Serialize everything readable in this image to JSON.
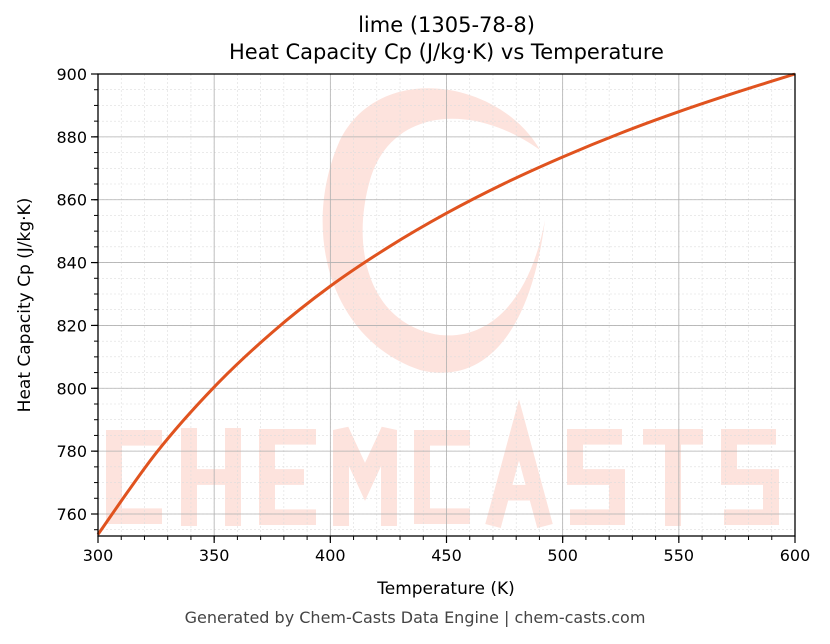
{
  "chart_data": {
    "type": "line",
    "title": "lime (1305-78-8)",
    "subtitle": "Heat Capacity Cp (J/kg·K) vs Temperature",
    "xlabel": "Temperature (K)",
    "ylabel": "Heat Capacity Cp (J/kg·K)",
    "xlim": [
      300,
      600
    ],
    "ylim": [
      753,
      900
    ],
    "xticks": [
      300,
      350,
      400,
      450,
      500,
      550,
      600
    ],
    "yticks": [
      760,
      780,
      800,
      820,
      840,
      860,
      880,
      900
    ],
    "grid": true,
    "minor_grid": true,
    "series": [
      {
        "color": "#e0531f",
        "x": [
          300,
          325,
          350,
          375,
          400,
          425,
          450,
          475,
          500,
          525,
          550,
          575,
          600
        ],
        "y": [
          753.5,
          779.4,
          800.4,
          817.8,
          832.5,
          844.9,
          855.7,
          865.2,
          873.6,
          881.2,
          888.0,
          894.2,
          900.0
        ]
      }
    ]
  },
  "watermark": {
    "text": "CHEMCASTS",
    "color": "#fde3dd"
  },
  "footer": "Generated by Chem-Casts Data Engine | chem-casts.com"
}
